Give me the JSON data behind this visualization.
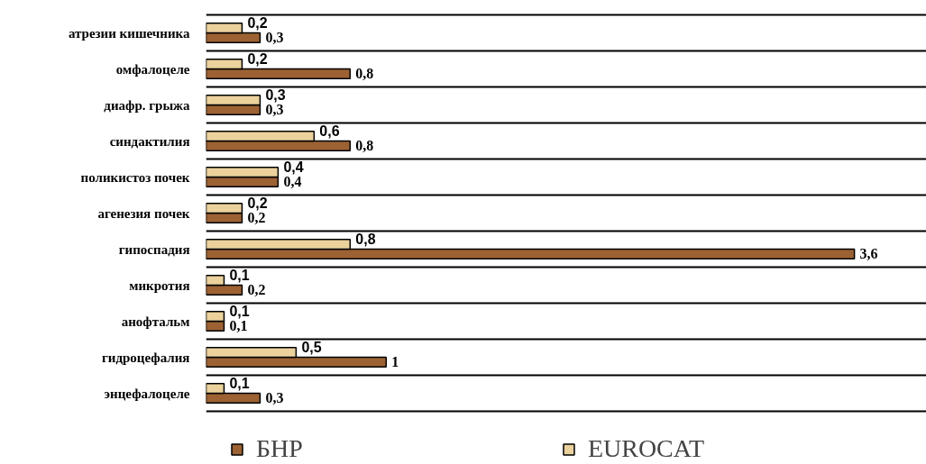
{
  "chart_data": {
    "type": "bar",
    "orientation": "horizontal",
    "categories": [
      "атрезии кишечника",
      "омфалоцеле",
      "диафр. грыжа",
      "синдактилия",
      "поликистоз почек",
      "агенезия почек",
      "гипоспадия",
      "микротия",
      "анофтальм",
      "гидроцефалия",
      "энцефалоцеле"
    ],
    "series": [
      {
        "name": "БНР",
        "color": "#9c6233",
        "values": [
          0.3,
          0.8,
          0.3,
          0.8,
          0.4,
          0.2,
          3.6,
          0.2,
          0.1,
          1,
          0.3
        ],
        "value_labels": [
          "0,3",
          "0,8",
          "0,3",
          "0,8",
          "0,4",
          "0,2",
          "3,6",
          "0,2",
          "0,1",
          "1",
          "0,3"
        ]
      },
      {
        "name": "EUROCAT",
        "color": "#ebd29c",
        "values": [
          0.2,
          0.2,
          0.3,
          0.6,
          0.4,
          0.2,
          0.8,
          0.1,
          0.1,
          0.5,
          0.1
        ],
        "value_labels": [
          "0,2",
          "0,2",
          "0,3",
          "0,6",
          "0,4",
          "0,2",
          "0,8",
          "0,1",
          "0,1",
          "0,5",
          "0,1"
        ]
      }
    ],
    "xlim": [
      0,
      4
    ],
    "tick_labels": "y",
    "grid": "y",
    "legend": "bottom"
  }
}
